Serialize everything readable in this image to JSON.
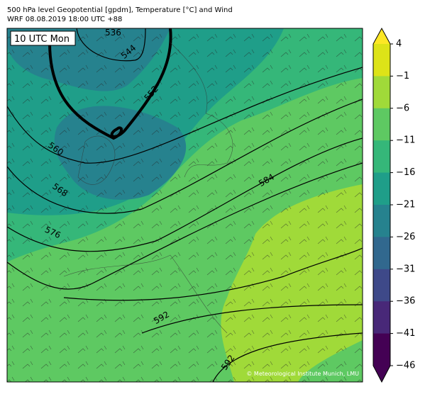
{
  "header": {
    "title": "500 hPa level Geopotential [gpdm], Temperature [°C] and Wind",
    "subtitle": "WRF 08.08.2019 18:00 UTC +88"
  },
  "map": {
    "time_label": "10 UTC Mon",
    "contour_labels": [
      "536",
      "544",
      "552",
      "560",
      "568",
      "576",
      "584",
      "592",
      "592"
    ],
    "credit": "© Meteorological Institute Munich, LMU"
  },
  "colorbar": {
    "ticks": [
      "4",
      "−1",
      "−6",
      "−11",
      "−16",
      "−21",
      "−26",
      "−31",
      "−36",
      "−41",
      "−46"
    ],
    "colors": [
      "#fde725",
      "#dde318",
      "#a0da39",
      "#5ec962",
      "#35b779",
      "#1f9e89",
      "#26828e",
      "#31688e",
      "#3e4989",
      "#482878",
      "#440154",
      "#440154"
    ]
  }
}
